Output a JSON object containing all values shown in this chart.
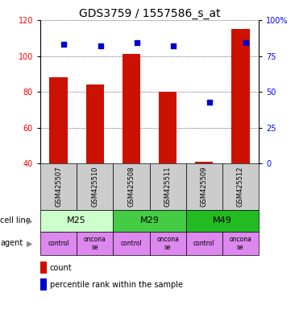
{
  "title": "GDS3759 / 1557586_s_at",
  "samples": [
    "GSM425507",
    "GSM425510",
    "GSM425508",
    "GSM425511",
    "GSM425509",
    "GSM425512"
  ],
  "count_values": [
    88,
    84,
    101,
    80,
    41,
    115
  ],
  "percentile_values": [
    83,
    82,
    84,
    82,
    43,
    84
  ],
  "ylim_left": [
    40,
    120
  ],
  "ylim_right": [
    0,
    100
  ],
  "yticks_left": [
    40,
    60,
    80,
    100,
    120
  ],
  "yticks_right": [
    0,
    25,
    50,
    75,
    100
  ],
  "ytick_labels_right": [
    "0",
    "25",
    "50",
    "75",
    "100%"
  ],
  "bar_color": "#cc1100",
  "dot_color": "#0000cc",
  "cell_lines": [
    {
      "label": "M25",
      "span": [
        0,
        2
      ],
      "color": "#ccffcc"
    },
    {
      "label": "M29",
      "span": [
        2,
        4
      ],
      "color": "#44cc44"
    },
    {
      "label": "M49",
      "span": [
        4,
        6
      ],
      "color": "#22bb22"
    }
  ],
  "agents": [
    "control",
    "onconase",
    "control",
    "onconase",
    "control",
    "onconase"
  ],
  "agent_color": "#dd88ee",
  "sample_box_color": "#cccccc",
  "bar_width": 0.5,
  "dot_size": 18,
  "title_fontsize": 10,
  "tick_fontsize": 7,
  "label_fontsize": 7
}
